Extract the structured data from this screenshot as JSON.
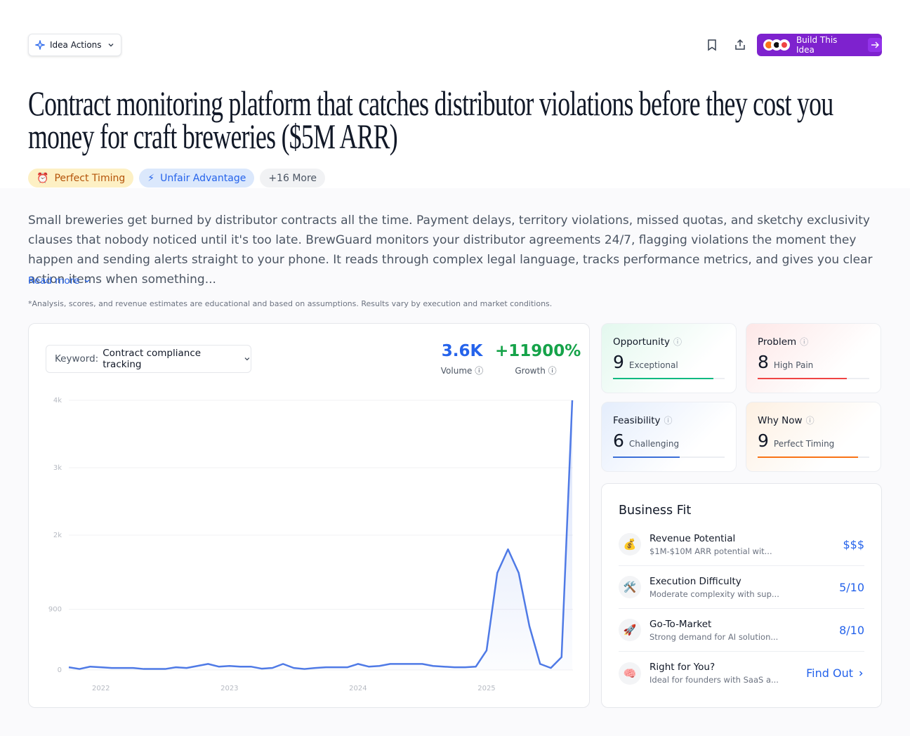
{
  "header": {
    "actions_button": "Idea Actions",
    "build_button": "Build This Idea"
  },
  "title": "Contract monitoring platform that catches distributor violations before they cost you money for craft breweries ($5M ARR)",
  "tags": [
    {
      "icon": "⏰",
      "label": "Perfect Timing"
    },
    {
      "icon": "⚡",
      "label": "Unfair Advantage"
    }
  ],
  "more_tags": "+16 More",
  "description": "Small breweries get burned by distributor contracts all the time. Payment delays, territory violations, missed quotas, and sketchy exclusivity clauses that nobody noticed until it's too late. BrewGuard monitors your distributor agreements 24/7, flagging violations the moment they happen and sending alerts straight to your phone. It reads through complex legal language, tracks performance metrics, and gives you clear action items when something...",
  "read_more": "Read more",
  "disclaimer": "*Analysis, scores, and revenue estimates are educational and based on assumptions. Results vary by execution and market conditions.",
  "trend": {
    "keyword_label": "Keyword:",
    "keyword": "Contract compliance tracking",
    "stats": [
      {
        "value": "3.6K",
        "label": "Volume"
      },
      {
        "value": "+11900%",
        "label": "Growth"
      }
    ]
  },
  "chart_data": {
    "type": "area",
    "categories": [
      null,
      null,
      null,
      "2022",
      null,
      null,
      null,
      null,
      null,
      null,
      null,
      null,
      null,
      null,
      null,
      "2023",
      null,
      null,
      null,
      null,
      null,
      null,
      null,
      null,
      null,
      null,
      null,
      "2024",
      null,
      null,
      null,
      null,
      null,
      null,
      null,
      null,
      null,
      null,
      null,
      "2025",
      null,
      null,
      null,
      null,
      null,
      null,
      null,
      null
    ],
    "values": [
      40,
      15,
      50,
      40,
      30,
      30,
      30,
      15,
      15,
      15,
      40,
      30,
      60,
      90,
      50,
      60,
      50,
      50,
      20,
      30,
      90,
      30,
      15,
      30,
      40,
      40,
      40,
      90,
      50,
      60,
      90,
      90,
      90,
      90,
      60,
      50,
      40,
      40,
      50,
      290,
      1440,
      1790,
      1440,
      650,
      90,
      30,
      190,
      4000
    ],
    "color": "#4f7ae6",
    "ylim": [
      0,
      4000
    ],
    "yticks": [
      0,
      900,
      {
        "value": 2000,
        "label": "2k"
      },
      {
        "value": 3000,
        "label": "3k"
      },
      {
        "value": 4000,
        "label": "4k"
      }
    ],
    "grid": true
  },
  "scores": [
    {
      "label": "Opportunity",
      "score": 9,
      "rating": "Exceptional"
    },
    {
      "label": "Problem",
      "score": 8,
      "rating": "High Pain"
    },
    {
      "label": "Feasibility",
      "score": 6,
      "rating": "Challenging"
    },
    {
      "label": "Why Now",
      "score": 9,
      "rating": "Perfect Timing"
    }
  ],
  "business_fit": {
    "title": "Business Fit",
    "items": [
      {
        "icon": "💰",
        "name": "Revenue Potential",
        "desc": "$1M-$10M ARR potential wit...",
        "value": "$$$"
      },
      {
        "icon": "🛠️",
        "name": "Execution Difficulty",
        "desc": "Moderate complexity with sup...",
        "value": "5/10"
      },
      {
        "icon": "🚀",
        "name": "Go-To-Market",
        "desc": "Strong demand for AI solution...",
        "value": "8/10"
      },
      {
        "icon": "🧠",
        "name": "Right for You?",
        "desc": "Ideal for founders with SaaS a...",
        "value": "Find Out"
      }
    ]
  }
}
